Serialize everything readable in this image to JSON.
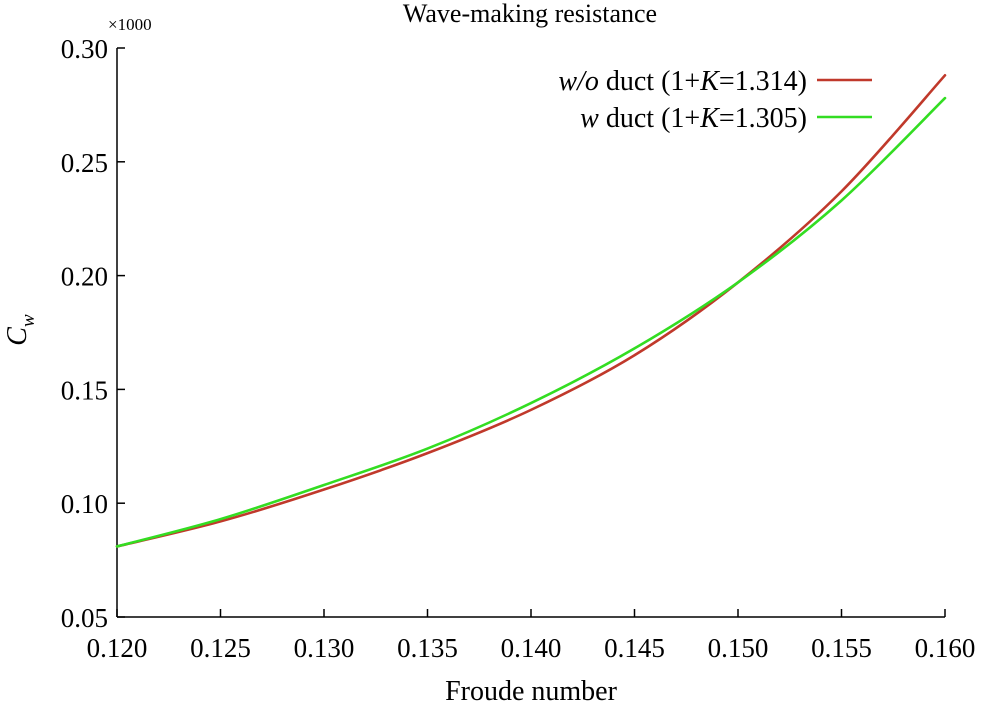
{
  "chart_data": {
    "type": "line",
    "title": "Wave-making resistance",
    "xlabel": "Froude number",
    "ylabel": {
      "main": "C",
      "subscript": "w"
    },
    "y_multiplier": "×1000",
    "xlim": [
      0.12,
      0.16
    ],
    "ylim": [
      0.05,
      0.3
    ],
    "xticks": [
      0.12,
      0.125,
      0.13,
      0.135,
      0.14,
      0.145,
      0.15,
      0.155,
      0.16
    ],
    "xtick_labels": [
      "0.120",
      "0.125",
      "0.130",
      "0.135",
      "0.140",
      "0.145",
      "0.150",
      "0.155",
      "0.160"
    ],
    "yticks": [
      0.05,
      0.1,
      0.15,
      0.2,
      0.25,
      0.3
    ],
    "ytick_labels": [
      "0.05",
      "0.10",
      "0.15",
      "0.20",
      "0.25",
      "0.30"
    ],
    "grid": false,
    "legend_position": "top-right",
    "series": [
      {
        "name_parts": {
          "pre": "w/o",
          "mid": " duct (1+",
          "k": "K",
          "post": "=1.314)"
        },
        "color": "#c0392b",
        "x": [
          0.12,
          0.125,
          0.13,
          0.135,
          0.14,
          0.145,
          0.15,
          0.155,
          0.16
        ],
        "y": [
          0.081,
          0.092,
          0.106,
          0.122,
          0.141,
          0.165,
          0.197,
          0.237,
          0.288
        ]
      },
      {
        "name_parts": {
          "pre": "w",
          "mid": " duct (1+",
          "k": "K",
          "post": "=1.305)"
        },
        "color": "#33dd22",
        "x": [
          0.12,
          0.125,
          0.13,
          0.135,
          0.14,
          0.145,
          0.15,
          0.155,
          0.16
        ],
        "y": [
          0.081,
          0.093,
          0.108,
          0.124,
          0.144,
          0.168,
          0.197,
          0.233,
          0.278
        ]
      }
    ]
  }
}
